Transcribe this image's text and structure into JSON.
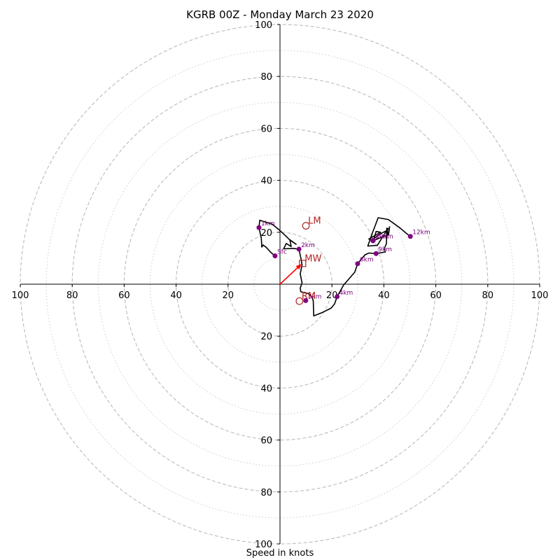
{
  "chart_data": {
    "type": "scatter",
    "subtype": "hodograph",
    "title": "KGRB 00Z - Monday March 23 2020",
    "xlabel": "Speed in knots",
    "xlim": [
      -100,
      100
    ],
    "ylim": [
      -100,
      100
    ],
    "ring_major": [
      20,
      40,
      60,
      80,
      100
    ],
    "ring_minor": [
      10,
      30,
      50,
      70,
      90
    ],
    "x_ticks": [
      {
        "v": -100,
        "label": "100"
      },
      {
        "v": -80,
        "label": "80"
      },
      {
        "v": -60,
        "label": "60"
      },
      {
        "v": -40,
        "label": "40"
      },
      {
        "v": -20,
        "label": "20"
      },
      {
        "v": 20,
        "label": "20"
      },
      {
        "v": 40,
        "label": "40"
      },
      {
        "v": 60,
        "label": "60"
      },
      {
        "v": 80,
        "label": "80"
      },
      {
        "v": 100,
        "label": "100"
      }
    ],
    "y_ticks": [
      {
        "v": 100,
        "label": "100"
      },
      {
        "v": 80,
        "label": "80"
      },
      {
        "v": 60,
        "label": "60"
      },
      {
        "v": 40,
        "label": "40"
      },
      {
        "v": 20,
        "label": "20"
      },
      {
        "v": -20,
        "label": "20"
      },
      {
        "v": -40,
        "label": "40"
      },
      {
        "v": -60,
        "label": "60"
      },
      {
        "v": -80,
        "label": "80"
      },
      {
        "v": -100,
        "label": "100"
      }
    ],
    "hodograph": [
      [
        -1.9,
        10.9
      ],
      [
        -3.5,
        12.2
      ],
      [
        -5.3,
        14.2
      ],
      [
        -6.5,
        15.1
      ],
      [
        -7.0,
        14.3
      ],
      [
        -7.2,
        17.7
      ],
      [
        -8.1,
        21.8
      ],
      [
        -7.8,
        24.6
      ],
      [
        -3.0,
        23.1
      ],
      [
        -0.3,
        20.9
      ],
      [
        2.0,
        18.8
      ],
      [
        3.5,
        17.3
      ],
      [
        6.2,
        15.4
      ],
      [
        3.8,
        17.0
      ],
      [
        4.3,
        14.5
      ],
      [
        2.4,
        15.7
      ],
      [
        1.4,
        13.6
      ],
      [
        4.9,
        13.8
      ],
      [
        7.3,
        13.5
      ],
      [
        8.2,
        9.3
      ],
      [
        8.5,
        7.4
      ],
      [
        7.8,
        4.0
      ],
      [
        8.5,
        0.5
      ],
      [
        7.8,
        -1.5
      ],
      [
        8.0,
        -2.9
      ],
      [
        10.9,
        -3.6
      ],
      [
        12.3,
        -4.9
      ],
      [
        12.8,
        -6.4
      ],
      [
        13.0,
        -12.2
      ],
      [
        16.1,
        -11.0
      ],
      [
        19.7,
        -9.2
      ],
      [
        21.0,
        -7.6
      ],
      [
        22.0,
        -4.8
      ],
      [
        24.5,
        -0.3
      ],
      [
        28.8,
        4.6
      ],
      [
        29.9,
        7.9
      ],
      [
        32.7,
        11.3
      ],
      [
        34.2,
        12.0
      ],
      [
        37.0,
        11.8
      ],
      [
        40.5,
        12.4
      ],
      [
        40.3,
        14.1
      ],
      [
        41.0,
        15.6
      ],
      [
        41.1,
        21.6
      ],
      [
        41.6,
        18.8
      ],
      [
        42.2,
        22.1
      ],
      [
        41.8,
        19.2
      ],
      [
        35.8,
        16.7
      ],
      [
        34.2,
        17.4
      ],
      [
        38.7,
        20.0
      ],
      [
        37.0,
        20.3
      ],
      [
        36.2,
        17.6
      ],
      [
        38.8,
        19.5
      ],
      [
        41.4,
        20.8
      ],
      [
        41.6,
        21.5
      ],
      [
        37.5,
        15.0
      ],
      [
        33.8,
        14.7
      ],
      [
        35.6,
        19.8
      ],
      [
        36.8,
        22.9
      ],
      [
        37.8,
        25.6
      ],
      [
        41.7,
        24.9
      ],
      [
        43.8,
        23.4
      ],
      [
        46.4,
        21.5
      ],
      [
        48.5,
        19.7
      ],
      [
        50.2,
        18.4
      ]
    ],
    "height_markers": [
      {
        "label": "Sfc",
        "u": -1.9,
        "v": 10.9
      },
      {
        "label": "1km",
        "u": -8.1,
        "v": 21.8
      },
      {
        "label": "2km",
        "u": 7.3,
        "v": 13.5
      },
      {
        "label": "3km",
        "u": 9.9,
        "v": -6.3
      },
      {
        "label": "4km",
        "u": 22.0,
        "v": -4.8
      },
      {
        "label": "6km",
        "u": 29.9,
        "v": 7.9
      },
      {
        "label": "8km",
        "u": 35.8,
        "v": 16.7
      },
      {
        "label": "9km",
        "u": 37.0,
        "v": 11.8
      },
      {
        "label": "10km",
        "u": 35.9,
        "v": 16.9
      },
      {
        "label": "12km",
        "u": 50.2,
        "v": 18.4
      }
    ],
    "motions": [
      {
        "label": "LM",
        "u": 10.0,
        "v": 22.5,
        "marker": "circle"
      },
      {
        "label": "RM",
        "u": 7.5,
        "v": -6.5,
        "marker": "circle"
      },
      {
        "label": "MW",
        "u": 8.7,
        "v": 8.0,
        "marker": "square"
      }
    ],
    "shear_arrow": {
      "from": [
        0,
        0
      ],
      "to": [
        8.1,
        7.6
      ]
    },
    "colors": {
      "trace": "#000000",
      "markers": "#800080",
      "motions": "#b22222",
      "arrow": "#ff0000",
      "ring_major": "#bbbbbb",
      "ring_minor": "#cccccc"
    }
  }
}
